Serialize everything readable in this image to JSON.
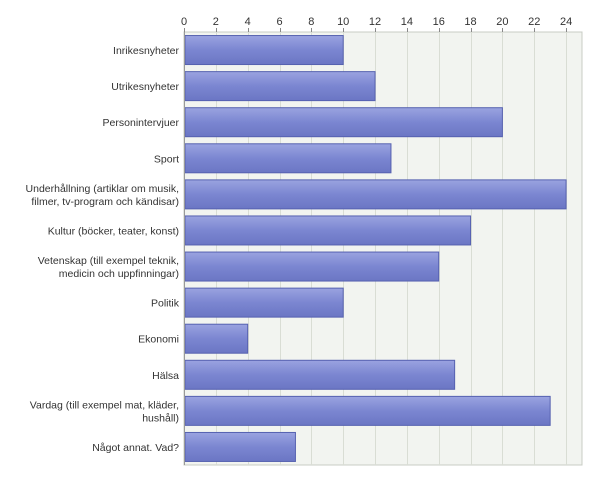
{
  "chart_data": {
    "type": "bar",
    "orientation": "horizontal",
    "categories": [
      "Inrikesnyheter",
      "Utrikesnyheter",
      "Personintervjuer",
      "Sport",
      "Underhållning (artiklar om musik, filmer, tv-program och kändisar)",
      "Kultur (böcker, teater, konst)",
      "Vetenskap (till exempel teknik, medicin och uppfinningar)",
      "Politik",
      "Ekonomi",
      "Hälsa",
      "Vardag (till exempel mat, kläder, hushåll)",
      "Något annat. Vad?"
    ],
    "category_lines": [
      [
        "Inrikesnyheter"
      ],
      [
        "Utrikesnyheter"
      ],
      [
        "Personintervjuer"
      ],
      [
        "Sport"
      ],
      [
        "Underhållning (artiklar om musik,",
        "filmer, tv-program och kändisar)"
      ],
      [
        "Kultur (böcker, teater, konst)"
      ],
      [
        "Vetenskap (till exempel teknik,",
        "medicin och uppfinningar)"
      ],
      [
        "Politik"
      ],
      [
        "Ekonomi"
      ],
      [
        "Hälsa"
      ],
      [
        "Vardag (till exempel mat, kläder,",
        "hushåll)"
      ],
      [
        "Något annat. Vad?"
      ]
    ],
    "values": [
      10,
      12,
      20,
      13,
      24,
      18,
      16,
      10,
      4,
      17,
      23,
      7
    ],
    "xlim": [
      0,
      25
    ],
    "xticks": [
      0,
      2,
      4,
      6,
      8,
      10,
      12,
      14,
      16,
      18,
      20,
      22,
      24
    ],
    "xaxis_position": "top",
    "grid": true,
    "legend": "none",
    "title": "",
    "xlabel": "",
    "ylabel": "",
    "colors": {
      "bar_fill": "#7b86d1",
      "bar_stroke": "#5661b0",
      "plot_background": "#f2f4f0",
      "grid": "#d9ddd4"
    }
  }
}
